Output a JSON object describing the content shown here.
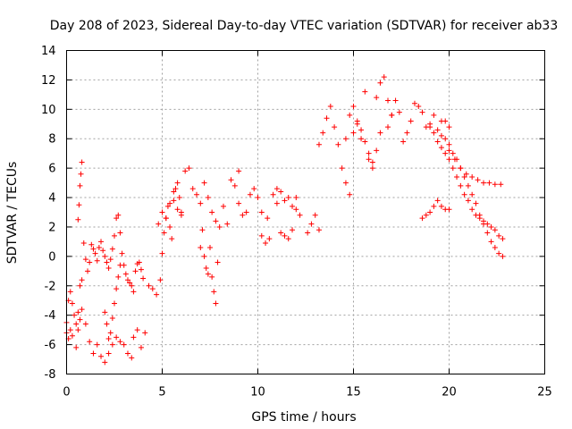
{
  "chart_data": {
    "type": "scatter",
    "title": "Day 208 of 2023, Sidereal Day-to-day VTEC variation (SDTVAR) for receiver ab33",
    "xlabel": "GPS time / hours",
    "ylabel": "SDTVAR / TECUs",
    "xlim": [
      0,
      25
    ],
    "ylim": [
      -8,
      14
    ],
    "xticks": [
      0,
      5,
      10,
      15,
      20,
      25
    ],
    "yticks": [
      -8,
      -6,
      -4,
      -2,
      0,
      2,
      4,
      6,
      8,
      10,
      12,
      14
    ],
    "grid": true,
    "marker": "+",
    "color": "#ff0000",
    "series": [
      {
        "name": "SDTVAR",
        "x": [
          0.0,
          0.1,
          0.2,
          0.3,
          0.4,
          0.5,
          0.6,
          0.7,
          0.8,
          0.9,
          1.0,
          1.1,
          1.2,
          1.3,
          1.4,
          1.5,
          1.6,
          1.7,
          1.8,
          1.9,
          2.0,
          2.1,
          2.2,
          2.3,
          2.4,
          2.5,
          2.6,
          2.7,
          2.8,
          2.9,
          3.0,
          3.1,
          3.2,
          3.3,
          3.4,
          3.5,
          3.6,
          3.7,
          3.8,
          3.9,
          4.0,
          0.0,
          0.1,
          0.2,
          0.3,
          0.5,
          0.6,
          0.7,
          0.8,
          1.0,
          1.2,
          1.4,
          1.6,
          1.8,
          2.0,
          2.2,
          2.4,
          2.6,
          2.8,
          3.0,
          3.2,
          3.4,
          0.6,
          0.65,
          0.7,
          0.75,
          0.8,
          2.0,
          2.1,
          2.2,
          2.3,
          2.4,
          2.5,
          2.6,
          2.7,
          2.8,
          3.5,
          3.7,
          3.9,
          4.1,
          4.3,
          4.5,
          4.7,
          4.9,
          5.0,
          5.1,
          5.2,
          5.3,
          5.4,
          5.5,
          5.6,
          5.7,
          5.8,
          5.9,
          6.0,
          4.8,
          5.0,
          5.2,
          5.4,
          5.6,
          5.8,
          6.0,
          6.2,
          6.4,
          6.6,
          6.8,
          7.0,
          7.2,
          7.4,
          7.6,
          7.8,
          8.0,
          8.2,
          8.4,
          8.6,
          8.8,
          9.0,
          7.0,
          7.1,
          7.2,
          7.3,
          7.4,
          7.5,
          7.6,
          7.7,
          7.8,
          7.9,
          9.0,
          9.2,
          9.4,
          9.6,
          9.8,
          10.0,
          10.2,
          10.4,
          10.6,
          10.8,
          11.0,
          11.2,
          11.4,
          11.6,
          11.8,
          12.0,
          12.2,
          10.2,
          10.5,
          11.0,
          11.2,
          11.4,
          11.6,
          11.8,
          12.0,
          12.6,
          12.8,
          13.0,
          13.2,
          13.2,
          13.4,
          13.6,
          13.8,
          14.0,
          14.2,
          14.4,
          14.6,
          14.8,
          15.0,
          15.2,
          15.4,
          15.6,
          15.8,
          16.0,
          16.2,
          16.4,
          16.6,
          16.8,
          17.0,
          14.6,
          14.8,
          15.0,
          15.2,
          15.4,
          15.6,
          15.8,
          16.0,
          16.2,
          16.4,
          16.8,
          17.0,
          17.2,
          17.4,
          17.6,
          17.8,
          18.0,
          18.2,
          18.4,
          18.6,
          18.8,
          19.0,
          19.2,
          19.4,
          19.6,
          19.8,
          20.0,
          19.0,
          19.2,
          19.4,
          19.6,
          19.8,
          20.0,
          20.2,
          20.4,
          20.6,
          20.8,
          21.0,
          21.2,
          21.4,
          21.6,
          21.8,
          22.0,
          22.2,
          22.4,
          22.6,
          22.8,
          19.6,
          19.8,
          20.0,
          20.2,
          20.4,
          20.6,
          20.8,
          21.0,
          21.2,
          21.4,
          21.6,
          21.8,
          22.0,
          22.2,
          22.4,
          22.6,
          22.8,
          20.0,
          20.3,
          20.6,
          20.9,
          21.2,
          21.5,
          21.8,
          22.1,
          22.4,
          22.7,
          18.6,
          18.8,
          19.0,
          19.2,
          19.4,
          19.6,
          19.8,
          20.0
        ],
        "y": [
          -4.5,
          -3.0,
          -2.4,
          -3.2,
          -4.0,
          -4.6,
          -3.8,
          -2.0,
          -1.6,
          0.9,
          -0.2,
          -1.0,
          -0.4,
          0.8,
          0.5,
          0.2,
          -0.3,
          0.6,
          1.0,
          0.4,
          0.0,
          -0.4,
          -0.8,
          -0.2,
          0.5,
          1.4,
          2.6,
          2.8,
          1.6,
          0.2,
          -0.6,
          -1.2,
          -1.6,
          -1.8,
          -2.0,
          -2.4,
          -1.0,
          -0.5,
          -0.4,
          -0.9,
          -1.5,
          -5.2,
          -5.6,
          -5.0,
          -5.4,
          -6.2,
          -5.0,
          -4.3,
          -3.6,
          -4.6,
          -5.8,
          -6.6,
          -6.0,
          -6.8,
          -7.2,
          -6.6,
          -6.0,
          -5.5,
          -5.8,
          -6.0,
          -6.6,
          -6.9,
          2.5,
          3.5,
          4.8,
          5.6,
          6.4,
          -3.8,
          -4.6,
          -5.6,
          -5.2,
          -4.2,
          -3.2,
          -2.2,
          -1.4,
          -0.6,
          -5.5,
          -5.0,
          -6.2,
          -5.2,
          -2.0,
          -2.2,
          -2.6,
          -1.6,
          0.2,
          1.6,
          2.6,
          3.4,
          2.0,
          1.2,
          3.8,
          4.6,
          5.0,
          4.0,
          3.0,
          2.2,
          3.0,
          2.6,
          3.6,
          4.4,
          3.2,
          2.8,
          5.8,
          6.0,
          4.6,
          4.2,
          3.6,
          5.0,
          4.0,
          3.0,
          2.4,
          2.0,
          3.4,
          2.2,
          5.2,
          4.8,
          5.8,
          0.6,
          1.8,
          0.0,
          -0.8,
          -1.2,
          0.6,
          -1.4,
          -2.4,
          -3.2,
          -0.4,
          3.6,
          2.8,
          3.0,
          4.2,
          4.6,
          4.0,
          1.4,
          0.9,
          1.2,
          4.2,
          4.6,
          4.4,
          3.8,
          4.0,
          3.4,
          3.2,
          2.8,
          3.0,
          2.6,
          3.6,
          1.6,
          1.4,
          1.2,
          1.8,
          4.0,
          1.6,
          2.2,
          2.8,
          1.8,
          7.6,
          8.4,
          9.4,
          10.2,
          8.8,
          7.6,
          6.0,
          5.0,
          4.2,
          8.4,
          9.0,
          8.0,
          11.2,
          7.0,
          6.4,
          10.8,
          11.8,
          12.2,
          10.6,
          9.6,
          8.0,
          9.6,
          10.2,
          9.2,
          8.6,
          7.8,
          6.6,
          6.0,
          7.2,
          8.4,
          8.8,
          9.6,
          10.6,
          9.8,
          7.8,
          8.4,
          9.2,
          10.4,
          10.2,
          9.8,
          8.8,
          9.0,
          9.6,
          8.6,
          9.2,
          9.2,
          8.8,
          8.8,
          8.4,
          7.8,
          7.4,
          7.0,
          6.6,
          6.0,
          5.4,
          4.8,
          4.2,
          3.8,
          3.2,
          2.8,
          2.6,
          2.4,
          2.2,
          2.0,
          1.8,
          1.4,
          1.2,
          8.2,
          8.0,
          7.6,
          7.0,
          6.6,
          6.0,
          5.4,
          4.8,
          4.2,
          3.6,
          2.8,
          2.2,
          1.6,
          1.0,
          0.6,
          0.2,
          0.0,
          7.2,
          6.6,
          6.0,
          5.6,
          5.4,
          5.2,
          5.0,
          5.0,
          4.9,
          4.9,
          2.6,
          2.8,
          3.0,
          3.4,
          3.8,
          3.4,
          3.2,
          3.2
        ]
      }
    ]
  }
}
